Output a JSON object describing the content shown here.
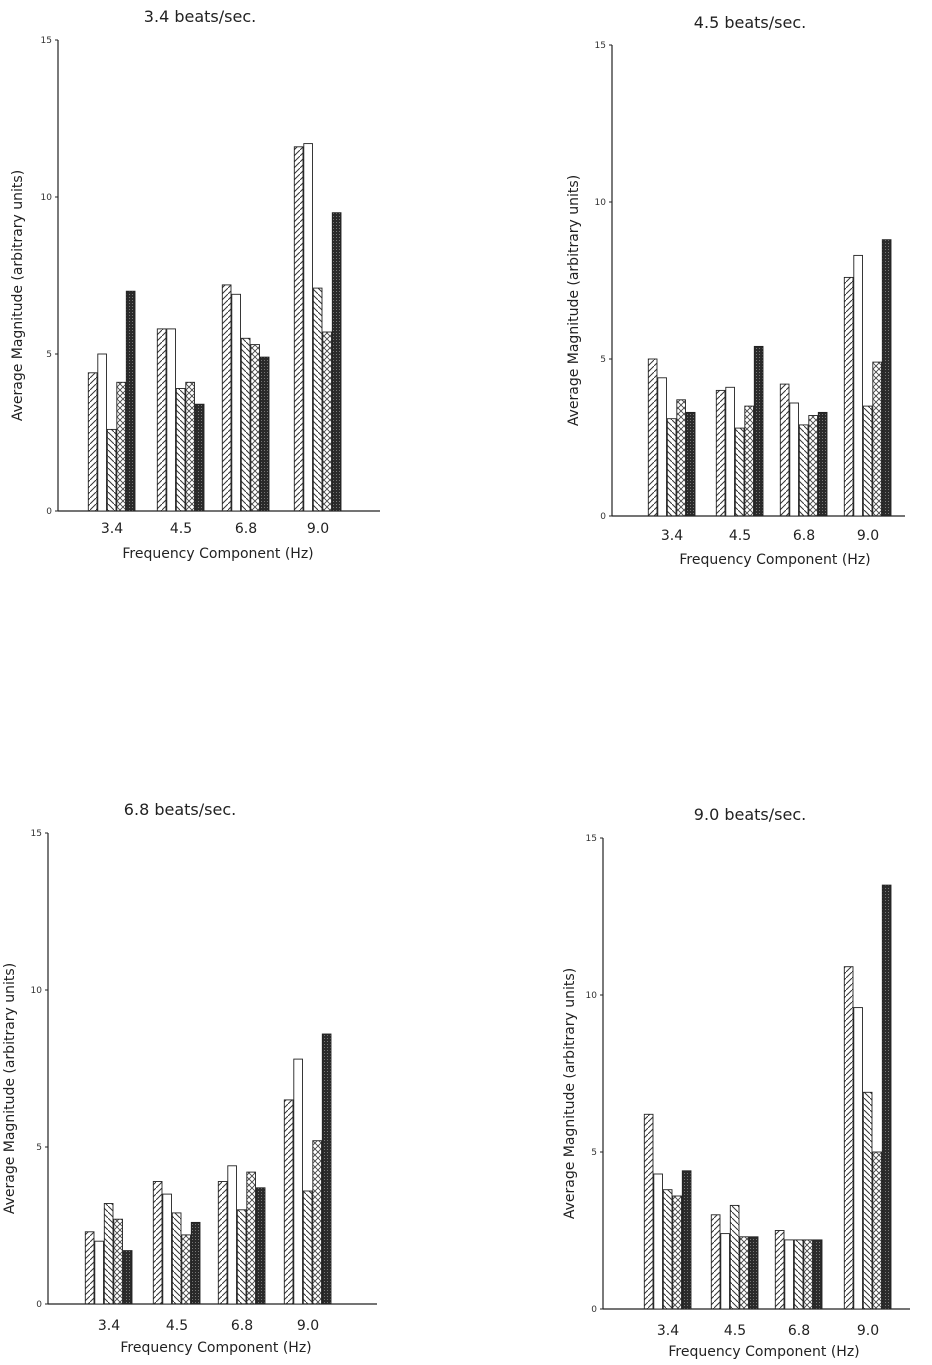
{
  "chart_data": [
    {
      "type": "bar",
      "title": "3.4 beats/sec.",
      "xlabel": "Frequency Component (Hz)",
      "ylabel": "Average Magnitude (arbitrary units)",
      "categories": [
        "3.4",
        "4.5",
        "6.8",
        "9.0"
      ],
      "yticks": [
        "0",
        "5",
        "10",
        "15"
      ],
      "ylim": [
        0,
        15
      ],
      "series": [
        {
          "values": [
            4.4,
            5.8,
            7.2,
            11.6
          ],
          "pattern": "diag-right"
        },
        {
          "values": [
            5.0,
            5.8,
            6.9,
            11.7
          ],
          "pattern": "open"
        },
        {
          "values": [
            2.6,
            3.9,
            5.5,
            7.1
          ],
          "pattern": "diag-left"
        },
        {
          "values": [
            4.1,
            4.1,
            5.3,
            5.7
          ],
          "pattern": "cross"
        },
        {
          "values": [
            7.0,
            3.4,
            4.9,
            9.5
          ],
          "pattern": "dark"
        }
      ]
    },
    {
      "type": "bar",
      "title": "4.5 beats/sec.",
      "xlabel": "Frequency Component (Hz)",
      "ylabel": "Average Magnitude (arbitrary units)",
      "categories": [
        "3.4",
        "4.5",
        "6.8",
        "9.0"
      ],
      "yticks": [
        "0",
        "5",
        "10",
        "15"
      ],
      "ylim": [
        0,
        15
      ],
      "series": [
        {
          "values": [
            5.0,
            4.0,
            4.2,
            7.6
          ],
          "pattern": "diag-right"
        },
        {
          "values": [
            4.4,
            4.1,
            3.6,
            8.3
          ],
          "pattern": "open"
        },
        {
          "values": [
            3.1,
            2.8,
            2.9,
            3.5
          ],
          "pattern": "diag-left"
        },
        {
          "values": [
            3.7,
            3.5,
            3.2,
            4.9
          ],
          "pattern": "cross"
        },
        {
          "values": [
            3.3,
            5.4,
            3.3,
            8.8
          ],
          "pattern": "dark"
        }
      ]
    },
    {
      "type": "bar",
      "title": "6.8 beats/sec.",
      "xlabel": "Frequency Component (Hz)",
      "ylabel": "Average Magnitude (arbitrary units)",
      "categories": [
        "3.4",
        "4.5",
        "6.8",
        "9.0"
      ],
      "yticks": [
        "0",
        "5",
        "10",
        "15"
      ],
      "ylim": [
        0,
        15
      ],
      "series": [
        {
          "values": [
            2.3,
            3.9,
            3.9,
            6.5
          ],
          "pattern": "diag-right"
        },
        {
          "values": [
            2.0,
            3.5,
            4.4,
            7.8
          ],
          "pattern": "open"
        },
        {
          "values": [
            3.2,
            2.9,
            3.0,
            3.6
          ],
          "pattern": "diag-left"
        },
        {
          "values": [
            2.7,
            2.2,
            4.2,
            5.2
          ],
          "pattern": "cross"
        },
        {
          "values": [
            1.7,
            2.6,
            3.7,
            8.6
          ],
          "pattern": "dark"
        }
      ]
    },
    {
      "type": "bar",
      "title": "9.0 beats/sec.",
      "xlabel": "Frequency Component (Hz)",
      "ylabel": "Average Magnitude (arbitrary units)",
      "categories": [
        "3.4",
        "4.5",
        "6.8",
        "9.0"
      ],
      "yticks": [
        "0",
        "5",
        "10",
        "15"
      ],
      "ylim": [
        0,
        15
      ],
      "series": [
        {
          "values": [
            6.2,
            3.0,
            2.5,
            10.9
          ],
          "pattern": "diag-right"
        },
        {
          "values": [
            4.3,
            2.4,
            2.2,
            9.6
          ],
          "pattern": "open"
        },
        {
          "values": [
            3.8,
            3.3,
            2.2,
            6.9
          ],
          "pattern": "diag-left"
        },
        {
          "values": [
            3.6,
            2.3,
            2.2,
            5.0
          ],
          "pattern": "cross"
        },
        {
          "values": [
            4.4,
            2.3,
            2.2,
            13.5
          ],
          "pattern": "dark"
        }
      ]
    }
  ]
}
